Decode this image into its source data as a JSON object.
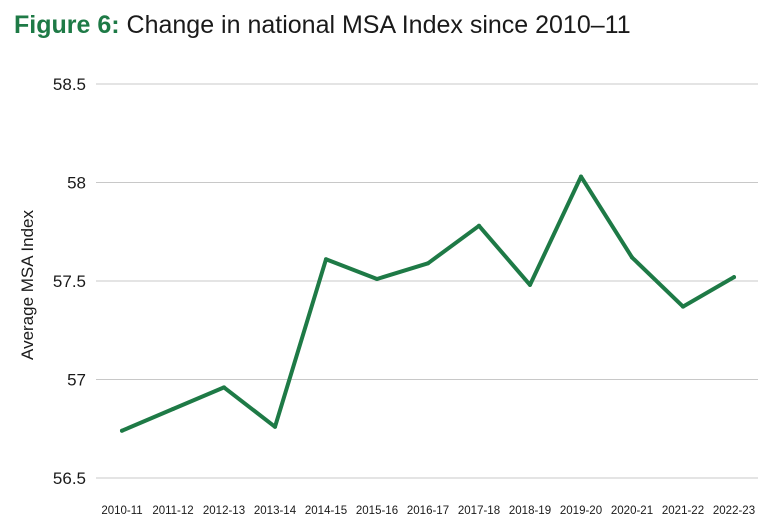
{
  "figure": {
    "label": "Figure 6:",
    "title": "Change in national MSA Index since 2010–11"
  },
  "colors": {
    "accent": "#1e7a46",
    "line": "#1e7a46",
    "grid": "#c8c8c8",
    "text": "#1a1a1a"
  },
  "chart_data": {
    "type": "line",
    "categories": [
      "2010-11",
      "2011-12",
      "2012-13",
      "2013-14",
      "2014-15",
      "2015-16",
      "2016-17",
      "2017-18",
      "2018-19",
      "2019-20",
      "2020-21",
      "2021-22",
      "2022-23"
    ],
    "series": [
      {
        "values": [
          56.74,
          56.85,
          56.96,
          56.76,
          57.61,
          57.51,
          57.59,
          57.78,
          57.48,
          58.03,
          57.62,
          57.37,
          57.52
        ]
      }
    ],
    "ylabel": "Average MSA Index",
    "xlabel": "",
    "ylim": [
      56.5,
      58.5
    ],
    "yticks": [
      56.5,
      57,
      57.5,
      58,
      58.5
    ],
    "ytick_labels": [
      "56.5",
      "57",
      "57.5",
      "58",
      "58.5"
    ],
    "grid": "horizontal",
    "legend": "none"
  }
}
